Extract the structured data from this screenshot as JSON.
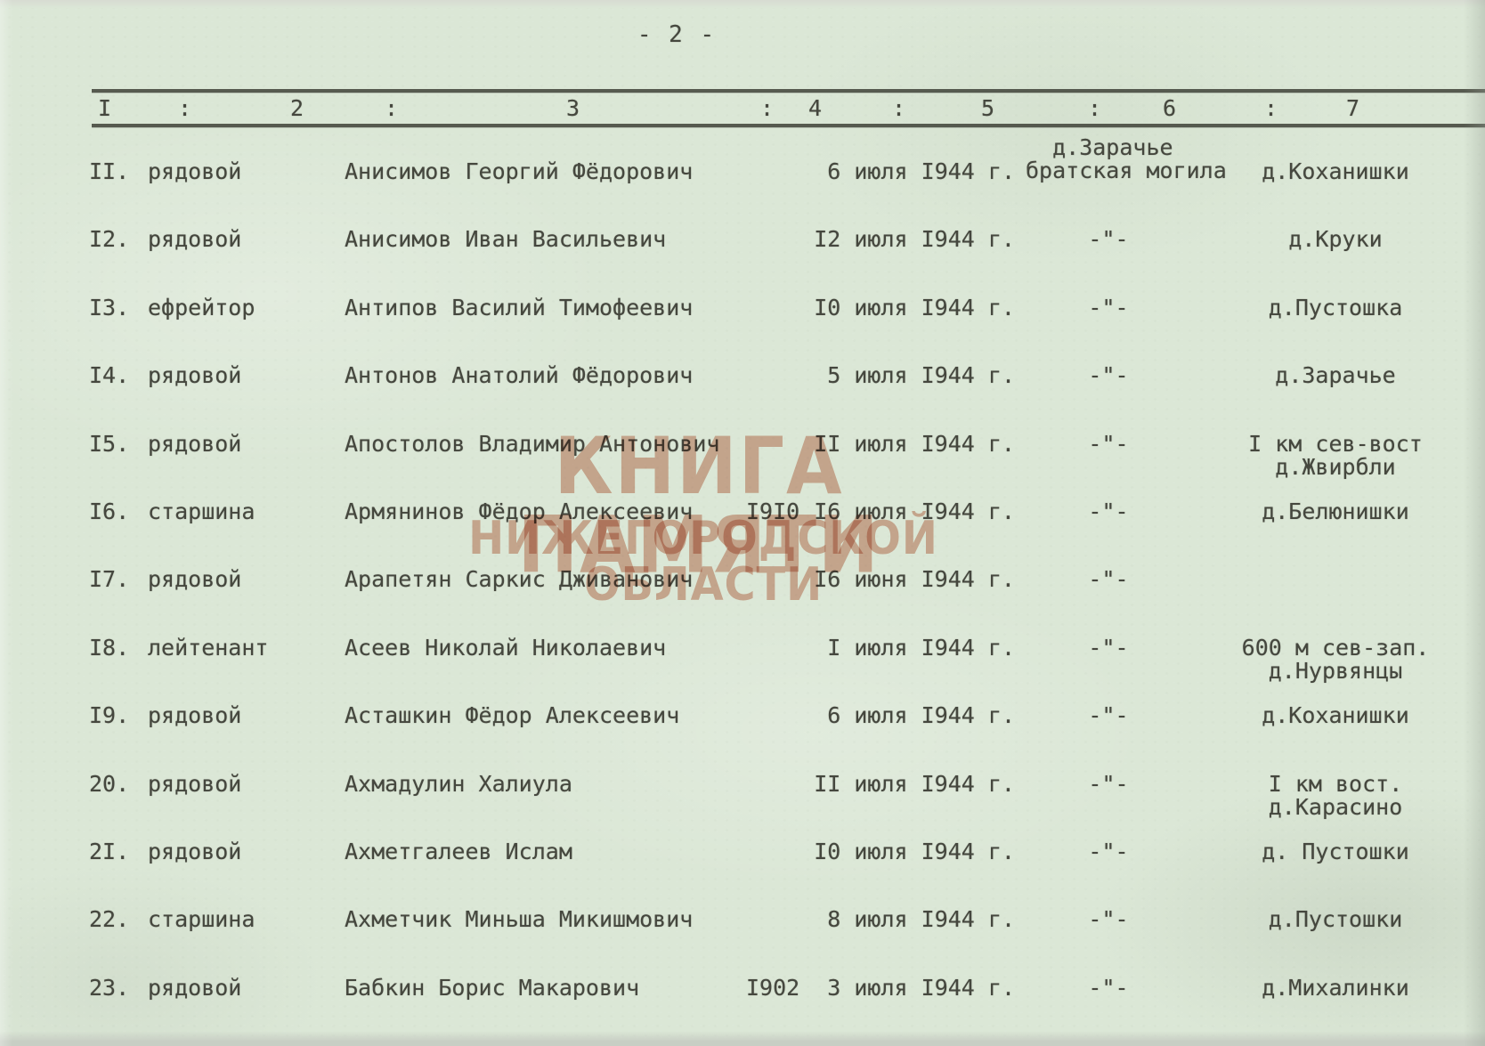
{
  "page": {
    "number_label": "- 2 -"
  },
  "colors": {
    "paper": "#dbe7d6",
    "ink": "#45473e",
    "watermark": "#c97054"
  },
  "watermark": {
    "line1": "КНИГА ПАМЯТИ",
    "line2": "НИЖЕГОРОДСКОЙ ОБЛАСТИ"
  },
  "table": {
    "header": {
      "columns": [
        "I",
        "2",
        "3",
        "4",
        "5",
        "6",
        "7"
      ],
      "separator": ":"
    },
    "rows": [
      {
        "num": "II.",
        "rank": "рядовой",
        "name": "Анисимов Георгий Фёдорович",
        "year": "",
        "date": "6 июля I944 г.",
        "grave": "  д.Зарачье\nбратская могила",
        "place": "д.Коханишки"
      },
      {
        "num": "I2.",
        "rank": "рядовой",
        "name": "Анисимов Иван Васильевич",
        "year": "",
        "date": "I2 июля I944 г.",
        "grave": "-\"-",
        "place": "д.Круки"
      },
      {
        "num": "I3.",
        "rank": "ефрейтор",
        "name": "Антипов Василий Тимофеевич",
        "year": "",
        "date": "I0 июля I944 г.",
        "grave": "-\"-",
        "place": "д.Пустошка"
      },
      {
        "num": "I4.",
        "rank": "рядовой",
        "name": "Антонов Анатолий Фёдорович",
        "year": "",
        "date": "5 июля I944 г.",
        "grave": "-\"-",
        "place": "д.Зарачье"
      },
      {
        "num": "I5.",
        "rank": "рядовой",
        "name": "Апостолов Владимир Антонович",
        "year": "",
        "date": "II июля I944 г.",
        "grave": "-\"-",
        "place": "I км сев-вост\nд.Жвирбли"
      },
      {
        "num": "I6.",
        "rank": "старшина",
        "name": "Армянинов Фёдор Алексеевич",
        "year": "I9I0",
        "date": "I6 июля I944 г.",
        "grave": "-\"-",
        "place": "д.Белюнишки"
      },
      {
        "num": "I7.",
        "rank": "рядовой",
        "name": "Арапетян Саркис Дживанович",
        "year": "",
        "date": "I6 июня I944 г.",
        "grave": "-\"-",
        "place": ""
      },
      {
        "num": "I8.",
        "rank": "лейтенант",
        "name": "Асеев Николай Николаевич",
        "year": "",
        "date": "I июля I944 г.",
        "grave": "-\"-",
        "place": "600 м сев-зап.\nд.Нурвянцы"
      },
      {
        "num": "I9.",
        "rank": "рядовой",
        "name": "Асташкин Фёдор Алексеевич",
        "year": "",
        "date": "6 июля I944 г.",
        "grave": "-\"-",
        "place": "д.Коханишки"
      },
      {
        "num": "20.",
        "rank": "рядовой",
        "name": "Ахмадулин Халиула",
        "year": "",
        "date": "II июля I944 г.",
        "grave": "-\"-",
        "place": "I км вост.\nд.Карасино"
      },
      {
        "num": "2I.",
        "rank": "рядовой",
        "name": "Ахметгалеев Ислам",
        "year": "",
        "date": "I0 июля I944 г.",
        "grave": "-\"-",
        "place": "д. Пустошки"
      },
      {
        "num": "22.",
        "rank": "старшина",
        "name": "Ахметчик Миньша Микишмович",
        "year": "",
        "date": "8 июля I944 г.",
        "grave": "-\"-",
        "place": "д.Пустошки"
      },
      {
        "num": "23.",
        "rank": "рядовой",
        "name": "Бабкин Борис Макарович",
        "year": "I902",
        "date": "3 июля I944 г.",
        "grave": "-\"-",
        "place": "д.Михалинки"
      }
    ]
  }
}
